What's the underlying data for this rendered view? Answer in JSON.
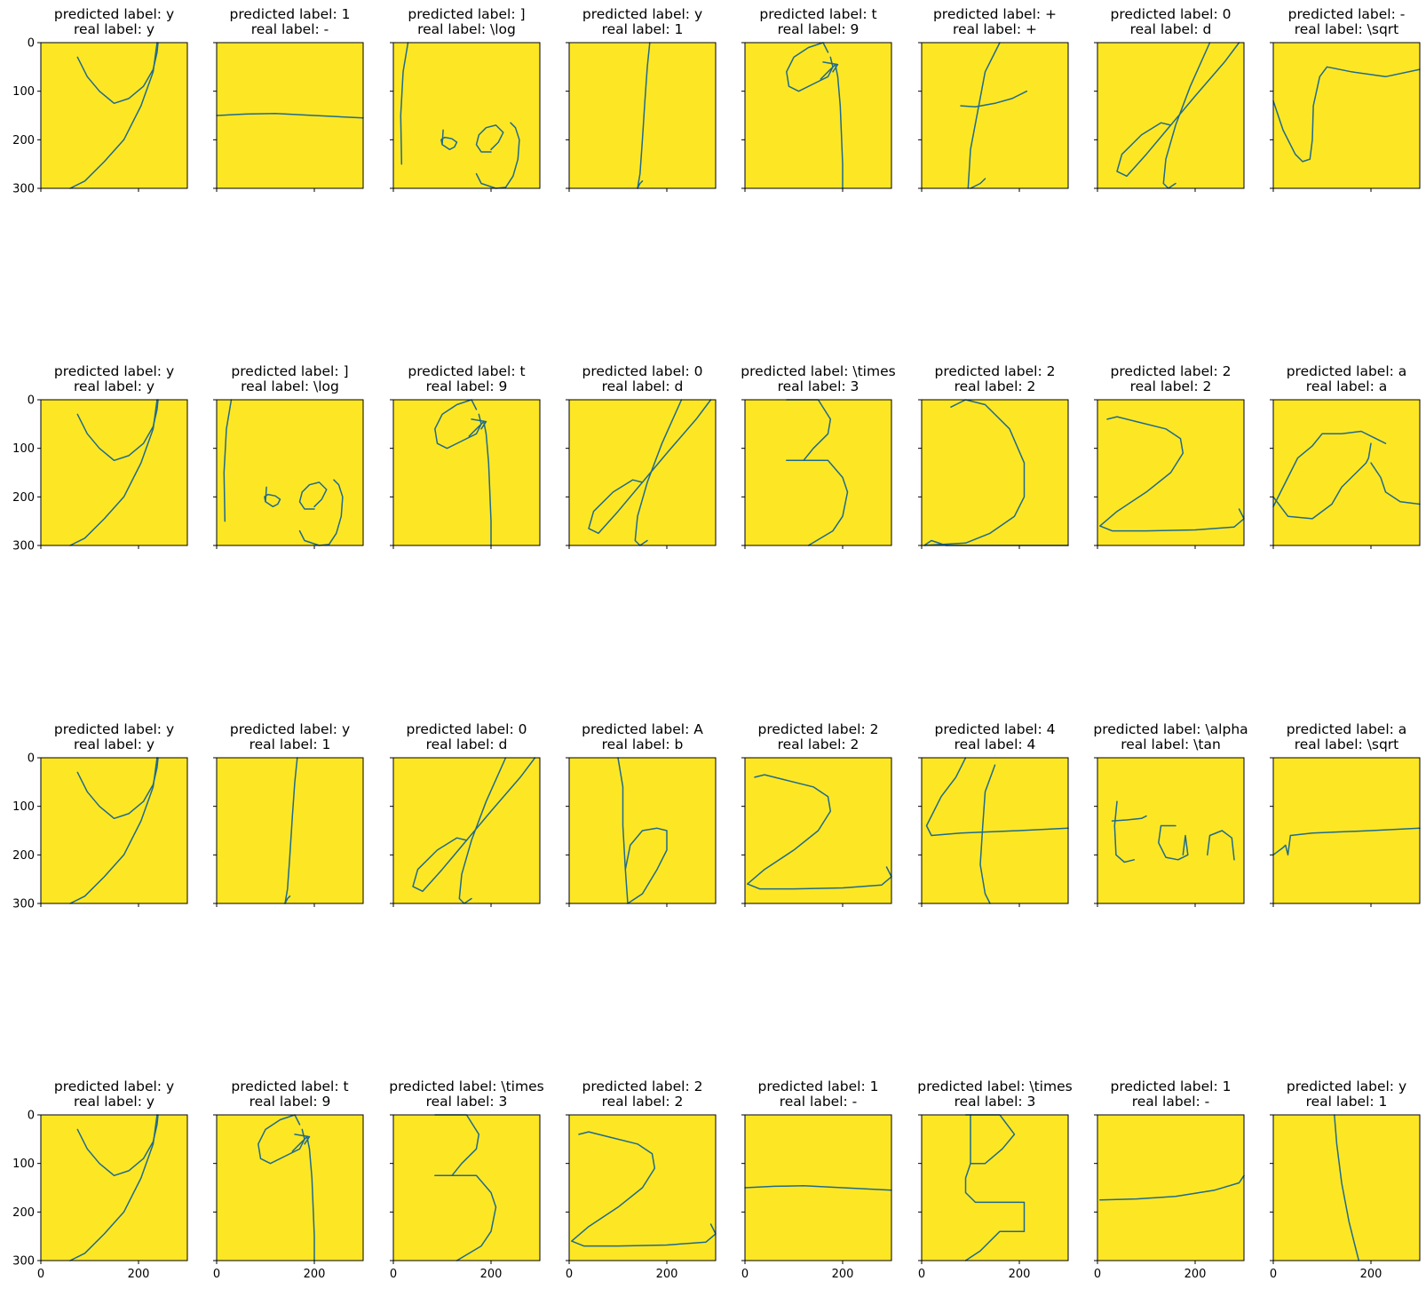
{
  "axis": {
    "xlim": [
      0,
      300
    ],
    "ylim": [
      300,
      0
    ],
    "xticks": [
      0,
      200
    ],
    "yticks": [
      0,
      100,
      200,
      300
    ],
    "sharex": true,
    "sharey": true,
    "background_color": "#FDE725",
    "stroke_color": "#1F6A8C"
  },
  "chart_data": {
    "type": "image-grid",
    "rows": 4,
    "cols": 8,
    "panels": [
      {
        "predicted": "predicted label: y",
        "real": "real label: y",
        "glyph": "y"
      },
      {
        "predicted": "predicted label: 1",
        "real": "real label: -",
        "glyph": "minus"
      },
      {
        "predicted": "predicted label: ]",
        "real": "real label: \\log",
        "glyph": "log"
      },
      {
        "predicted": "predicted label: y",
        "real": "real label: 1",
        "glyph": "one"
      },
      {
        "predicted": "predicted label: t",
        "real": "real label: 9",
        "glyph": "nine"
      },
      {
        "predicted": "predicted label: +",
        "real": "real label: +",
        "glyph": "plus"
      },
      {
        "predicted": "predicted label: 0",
        "real": "real label: d",
        "glyph": "d"
      },
      {
        "predicted": "predicted label: -",
        "real": "real label: \\sqrt",
        "glyph": "sqrt1"
      },
      {
        "predicted": "predicted label: y",
        "real": "real label: y",
        "glyph": "y"
      },
      {
        "predicted": "predicted label: ]",
        "real": "real label: \\log",
        "glyph": "log"
      },
      {
        "predicted": "predicted label: t",
        "real": "real label: 9",
        "glyph": "nine"
      },
      {
        "predicted": "predicted label: 0",
        "real": "real label: d",
        "glyph": "d"
      },
      {
        "predicted": "predicted label: \\times",
        "real": "real label: 3",
        "glyph": "three1"
      },
      {
        "predicted": "predicted label: 2",
        "real": "real label: 2",
        "glyph": "two1"
      },
      {
        "predicted": "predicted label: 2",
        "real": "real label: 2",
        "glyph": "two2"
      },
      {
        "predicted": "predicted label: a",
        "real": "real label: a",
        "glyph": "a"
      },
      {
        "predicted": "predicted label: y",
        "real": "real label: y",
        "glyph": "y"
      },
      {
        "predicted": "predicted label: y",
        "real": "real label: 1",
        "glyph": "one"
      },
      {
        "predicted": "predicted label: 0",
        "real": "real label: d",
        "glyph": "d"
      },
      {
        "predicted": "predicted label: A",
        "real": "real label: b",
        "glyph": "b"
      },
      {
        "predicted": "predicted label: 2",
        "real": "real label: 2",
        "glyph": "two2"
      },
      {
        "predicted": "predicted label: 4",
        "real": "real label: 4",
        "glyph": "four"
      },
      {
        "predicted": "predicted label: \\alpha",
        "real": "real label: \\tan",
        "glyph": "tan"
      },
      {
        "predicted": "predicted label: a",
        "real": "real label: \\sqrt",
        "glyph": "sqrt2"
      },
      {
        "predicted": "predicted label: y",
        "real": "real label: y",
        "glyph": "y"
      },
      {
        "predicted": "predicted label: t",
        "real": "real label: 9",
        "glyph": "nine"
      },
      {
        "predicted": "predicted label: \\times",
        "real": "real label: 3",
        "glyph": "three1"
      },
      {
        "predicted": "predicted label: 2",
        "real": "real label: 2",
        "glyph": "two2"
      },
      {
        "predicted": "predicted label: 1",
        "real": "real label: -",
        "glyph": "minus"
      },
      {
        "predicted": "predicted label: \\times",
        "real": "real label: 3",
        "glyph": "three2"
      },
      {
        "predicted": "predicted label: 1",
        "real": "real label: -",
        "glyph": "minus2"
      },
      {
        "predicted": "predicted label: y",
        "real": "real label: 1",
        "glyph": "one2"
      }
    ]
  }
}
